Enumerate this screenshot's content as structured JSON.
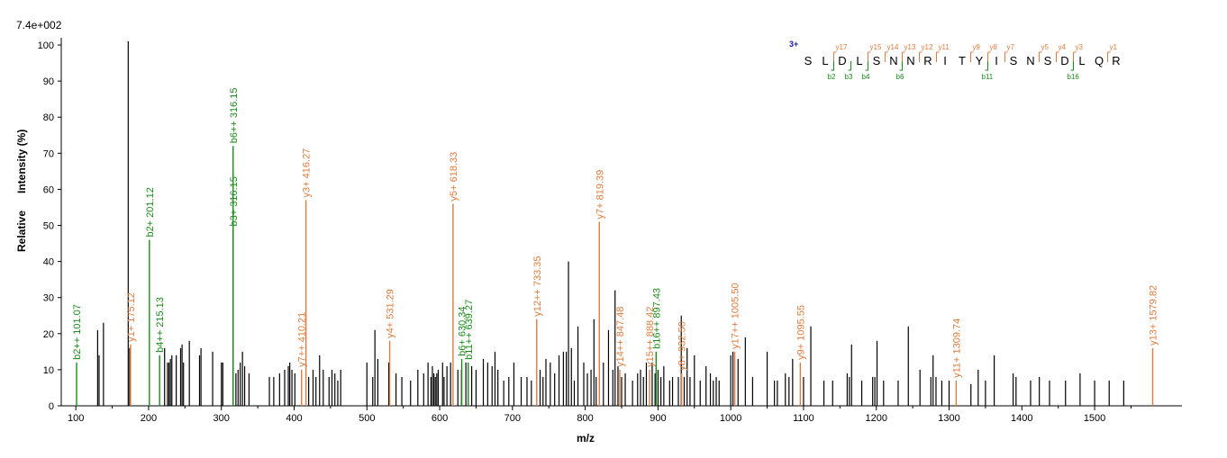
{
  "chart_data": {
    "type": "bar",
    "intensity_max_label": "7.4e+002",
    "xlabel": "m/z",
    "ylabel_parts": [
      "Relative",
      "Intensity (%)"
    ],
    "xlim": [
      80,
      1620
    ],
    "ylim": [
      0,
      102
    ],
    "x_ticks": [
      100,
      200,
      300,
      400,
      500,
      600,
      700,
      800,
      900,
      1000,
      1100,
      1200,
      1300,
      1400,
      1500
    ],
    "y_ticks": [
      0,
      10,
      20,
      30,
      40,
      50,
      60,
      70,
      80,
      90,
      100
    ],
    "colors": {
      "y_ion": "#e07b3f",
      "b_ion": "#1a8c1a",
      "other": "#000000",
      "charge": "#1a1aa0"
    },
    "annotated_peaks": [
      {
        "mz": 101.07,
        "intensity": 12,
        "ion": "b",
        "label": "b2++ 101.07"
      },
      {
        "mz": 175.12,
        "intensity": 17,
        "ion": "y",
        "label": "y1+ 175.12"
      },
      {
        "mz": 201.12,
        "intensity": 46,
        "ion": "b",
        "label": "b2+ 201.12"
      },
      {
        "mz": 215.13,
        "intensity": 14,
        "ion": "b",
        "label": "b4++ 215.13"
      },
      {
        "mz": 316.15,
        "intensity": 49,
        "ion": "b",
        "label": "b3+ 316.15"
      },
      {
        "mz": 316.15,
        "intensity": 72,
        "ion": "b",
        "label": "b6++ 316.15"
      },
      {
        "mz": 410.21,
        "intensity": 10,
        "ion": "y",
        "label": "y7++ 410.21"
      },
      {
        "mz": 416.27,
        "intensity": 57,
        "ion": "y",
        "label": "y3+ 416.27"
      },
      {
        "mz": 531.29,
        "intensity": 18,
        "ion": "y",
        "label": "y4+ 531.29"
      },
      {
        "mz": 618.33,
        "intensity": 56,
        "ion": "y",
        "label": "y5+ 618.33"
      },
      {
        "mz": 630.34,
        "intensity": 13,
        "ion": "b",
        "label": "b6+ 630.34"
      },
      {
        "mz": 639.27,
        "intensity": 12,
        "ion": "b",
        "label": "b11++ 639.27"
      },
      {
        "mz": 733.35,
        "intensity": 24,
        "ion": "y",
        "label": "y12++ 733.35"
      },
      {
        "mz": 819.39,
        "intensity": 51,
        "ion": "y",
        "label": "y7+ 819.39"
      },
      {
        "mz": 847.48,
        "intensity": 10,
        "ion": "y",
        "label": "y14++ 847.48"
      },
      {
        "mz": 888.42,
        "intensity": 10,
        "ion": "y",
        "label": "y15++ 888.42"
      },
      {
        "mz": 897.43,
        "intensity": 15,
        "ion": "b",
        "label": "b16++ 897.43"
      },
      {
        "mz": 932.5,
        "intensity": 9,
        "ion": "y",
        "label": "y8+ 932.50"
      },
      {
        "mz": 1005.5,
        "intensity": 15,
        "ion": "y",
        "label": "y17++ 1005.50"
      },
      {
        "mz": 1095.55,
        "intensity": 12,
        "ion": "y",
        "label": "y9+ 1095.55"
      },
      {
        "mz": 1309.74,
        "intensity": 7,
        "ion": "y",
        "label": "y11+ 1309.74"
      },
      {
        "mz": 1579.82,
        "intensity": 16,
        "ion": "y",
        "label": "y13+ 1579.82"
      }
    ],
    "peaks": [
      [
        130,
        21
      ],
      [
        132,
        14
      ],
      [
        138,
        23
      ],
      [
        172,
        101
      ],
      [
        174,
        16
      ],
      [
        222,
        16
      ],
      [
        226,
        12
      ],
      [
        228,
        12
      ],
      [
        230,
        13
      ],
      [
        232,
        14
      ],
      [
        238,
        14
      ],
      [
        244,
        16
      ],
      [
        246,
        17
      ],
      [
        248,
        12
      ],
      [
        256,
        18
      ],
      [
        270,
        14
      ],
      [
        272,
        16
      ],
      [
        288,
        15
      ],
      [
        300,
        12
      ],
      [
        302,
        12
      ],
      [
        320,
        9
      ],
      [
        323,
        10
      ],
      [
        326,
        12
      ],
      [
        329,
        15
      ],
      [
        332,
        11
      ],
      [
        338,
        9
      ],
      [
        366,
        8
      ],
      [
        372,
        8
      ],
      [
        380,
        9
      ],
      [
        387,
        10
      ],
      [
        392,
        11
      ],
      [
        394,
        12
      ],
      [
        397,
        10
      ],
      [
        401,
        9
      ],
      [
        420,
        8
      ],
      [
        426,
        10
      ],
      [
        430,
        8
      ],
      [
        435,
        14
      ],
      [
        440,
        10
      ],
      [
        448,
        8
      ],
      [
        452,
        10
      ],
      [
        456,
        9
      ],
      [
        460,
        7
      ],
      [
        464,
        10
      ],
      [
        500,
        12
      ],
      [
        508,
        8
      ],
      [
        511,
        21
      ],
      [
        515,
        13
      ],
      [
        530,
        12
      ],
      [
        540,
        9
      ],
      [
        548,
        8
      ],
      [
        560,
        7
      ],
      [
        570,
        10
      ],
      [
        578,
        9
      ],
      [
        584,
        12
      ],
      [
        588,
        8
      ],
      [
        590,
        11
      ],
      [
        592,
        9
      ],
      [
        594,
        8
      ],
      [
        596,
        9
      ],
      [
        598,
        10
      ],
      [
        604,
        12
      ],
      [
        606,
        8
      ],
      [
        610,
        11
      ],
      [
        615,
        12
      ],
      [
        625,
        10
      ],
      [
        630,
        10
      ],
      [
        636,
        12
      ],
      [
        644,
        11
      ],
      [
        650,
        10
      ],
      [
        660,
        13
      ],
      [
        666,
        12
      ],
      [
        672,
        11
      ],
      [
        676,
        15
      ],
      [
        680,
        10
      ],
      [
        688,
        7
      ],
      [
        695,
        8
      ],
      [
        702,
        12
      ],
      [
        712,
        8
      ],
      [
        720,
        8
      ],
      [
        726,
        7
      ],
      [
        738,
        10
      ],
      [
        742,
        8
      ],
      [
        746,
        13
      ],
      [
        752,
        12
      ],
      [
        758,
        9
      ],
      [
        764,
        14
      ],
      [
        770,
        15
      ],
      [
        774,
        15
      ],
      [
        777,
        40
      ],
      [
        781,
        16
      ],
      [
        785,
        7
      ],
      [
        790,
        22
      ],
      [
        798,
        12
      ],
      [
        803,
        9
      ],
      [
        808,
        10
      ],
      [
        812,
        24
      ],
      [
        815,
        8
      ],
      [
        825,
        12
      ],
      [
        832,
        21
      ],
      [
        838,
        10
      ],
      [
        841,
        32
      ],
      [
        845,
        11
      ],
      [
        850,
        8
      ],
      [
        855,
        9
      ],
      [
        865,
        7
      ],
      [
        872,
        9
      ],
      [
        876,
        10
      ],
      [
        880,
        8
      ],
      [
        884,
        12
      ],
      [
        892,
        12
      ],
      [
        896,
        9
      ],
      [
        900,
        10
      ],
      [
        904,
        8
      ],
      [
        908,
        11
      ],
      [
        916,
        7
      ],
      [
        920,
        8
      ],
      [
        928,
        8
      ],
      [
        932,
        25
      ],
      [
        936,
        8
      ],
      [
        940,
        16
      ],
      [
        944,
        8
      ],
      [
        950,
        14
      ],
      [
        958,
        7
      ],
      [
        966,
        11
      ],
      [
        972,
        9
      ],
      [
        976,
        7
      ],
      [
        980,
        8
      ],
      [
        984,
        7
      ],
      [
        1000,
        14
      ],
      [
        1003,
        15
      ],
      [
        1010,
        13
      ],
      [
        1020,
        19
      ],
      [
        1030,
        8
      ],
      [
        1050,
        15
      ],
      [
        1060,
        7
      ],
      [
        1064,
        7
      ],
      [
        1075,
        9
      ],
      [
        1080,
        8
      ],
      [
        1085,
        13
      ],
      [
        1100,
        8
      ],
      [
        1110,
        22
      ],
      [
        1128,
        7
      ],
      [
        1140,
        7
      ],
      [
        1160,
        9
      ],
      [
        1163,
        8
      ],
      [
        1166,
        17
      ],
      [
        1180,
        7
      ],
      [
        1195,
        8
      ],
      [
        1198,
        8
      ],
      [
        1201,
        18
      ],
      [
        1210,
        7
      ],
      [
        1230,
        7
      ],
      [
        1244,
        22
      ],
      [
        1260,
        10
      ],
      [
        1275,
        8
      ],
      [
        1278,
        14
      ],
      [
        1282,
        8
      ],
      [
        1290,
        7
      ],
      [
        1300,
        7
      ],
      [
        1330,
        6
      ],
      [
        1340,
        10
      ],
      [
        1350,
        7
      ],
      [
        1362,
        14
      ],
      [
        1388,
        9
      ],
      [
        1392,
        8
      ],
      [
        1412,
        7
      ],
      [
        1424,
        8
      ],
      [
        1438,
        7
      ],
      [
        1460,
        7
      ],
      [
        1480,
        9
      ],
      [
        1500,
        7
      ],
      [
        1520,
        7
      ],
      [
        1540,
        7
      ]
    ],
    "sequence": {
      "charge": "3+",
      "residues": [
        "S",
        "L",
        "D",
        "L",
        "S",
        "N",
        "N",
        "R",
        "I",
        "T",
        "Y",
        "I",
        "S",
        "N",
        "S",
        "D",
        "L",
        "Q",
        "R"
      ],
      "y_labels": [
        {
          "after": 2,
          "label": "y17"
        },
        {
          "after": 4,
          "label": "y15"
        },
        {
          "after": 5,
          "label": "y14"
        },
        {
          "after": 6,
          "label": "y13"
        },
        {
          "after": 7,
          "label": "y12"
        },
        {
          "after": 8,
          "label": "y11"
        },
        {
          "after": 10,
          "label": "y9"
        },
        {
          "after": 11,
          "label": "y8"
        },
        {
          "after": 12,
          "label": "y7"
        },
        {
          "after": 14,
          "label": "y5"
        },
        {
          "after": 15,
          "label": "y4"
        },
        {
          "after": 16,
          "label": "y3"
        },
        {
          "after": 18,
          "label": "y1"
        }
      ],
      "b_labels": [
        {
          "after": 2,
          "label": "b2"
        },
        {
          "after": 3,
          "label": "b3"
        },
        {
          "after": 4,
          "label": "b4"
        },
        {
          "after": 6,
          "label": "b6"
        },
        {
          "after": 11,
          "label": "b11"
        },
        {
          "after": 16,
          "label": "b16"
        }
      ]
    }
  }
}
